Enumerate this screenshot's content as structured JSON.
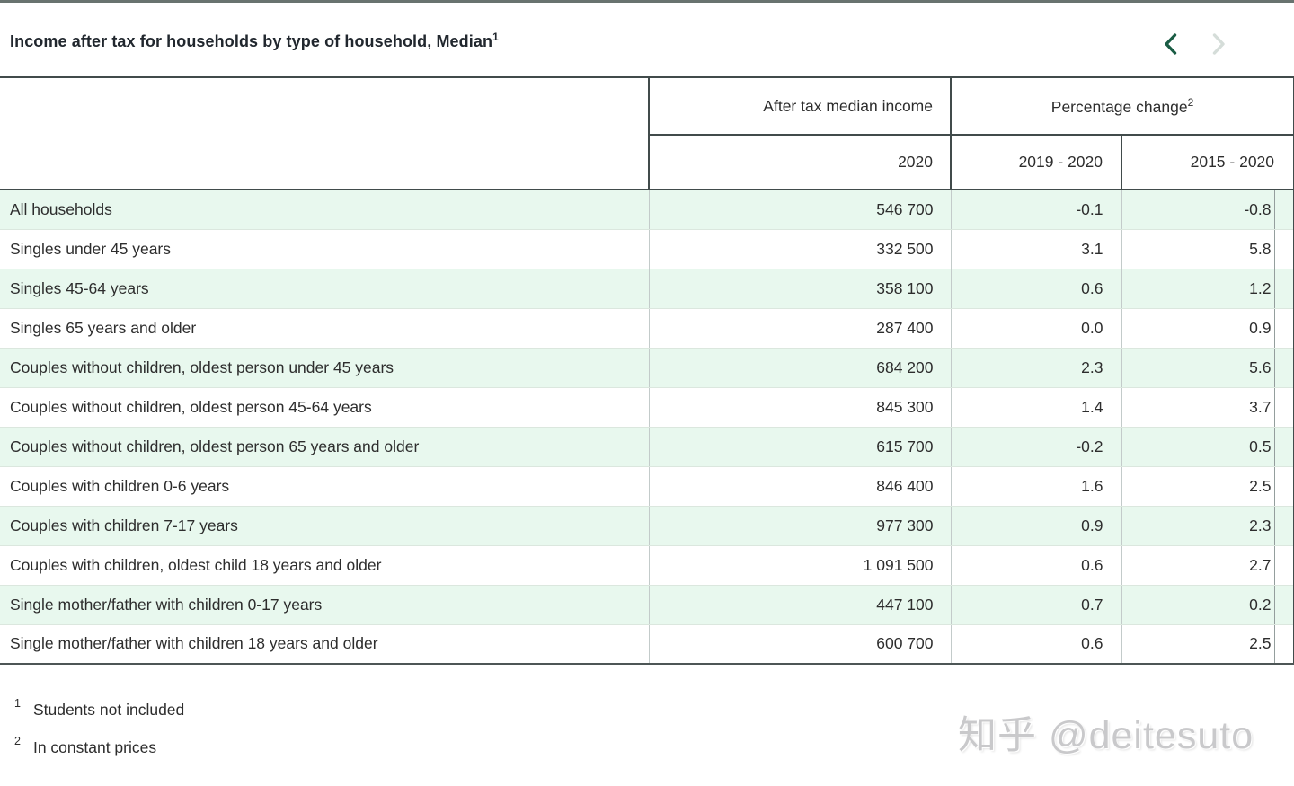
{
  "page": {
    "title": "Income after tax for households by type of household, Median",
    "title_footnote_ref": "1"
  },
  "pager": {
    "prev_label": "previous table page",
    "next_label": "next table page"
  },
  "table": {
    "groups": [
      {
        "label": "After tax median income",
        "sup": ""
      },
      {
        "label": "Percentage change",
        "sup": "2"
      }
    ],
    "columns": [
      "2020",
      "2019 - 2020",
      "2015 - 2020"
    ],
    "rows": [
      {
        "label": "All households",
        "values": [
          "546 700",
          "-0.1",
          "-0.8"
        ]
      },
      {
        "label": "Singles under 45 years",
        "values": [
          "332 500",
          "3.1",
          "5.8"
        ]
      },
      {
        "label": "Singles 45-64 years",
        "values": [
          "358 100",
          "0.6",
          "1.2"
        ]
      },
      {
        "label": "Singles 65 years and older",
        "values": [
          "287 400",
          "0.0",
          "0.9"
        ]
      },
      {
        "label": "Couples without children, oldest person under 45 years",
        "values": [
          "684 200",
          "2.3",
          "5.6"
        ]
      },
      {
        "label": "Couples without children, oldest person 45-64 years",
        "values": [
          "845 300",
          "1.4",
          "3.7"
        ]
      },
      {
        "label": "Couples without children, oldest person 65 years and older",
        "values": [
          "615 700",
          "-0.2",
          "0.5"
        ]
      },
      {
        "label": "Couples with children 0-6 years",
        "values": [
          "846 400",
          "1.6",
          "2.5"
        ]
      },
      {
        "label": "Couples with children 7-17 years",
        "values": [
          "977 300",
          "0.9",
          "2.3"
        ]
      },
      {
        "label": "Couples with children, oldest child 18 years and older",
        "values": [
          "1 091 500",
          "0.6",
          "2.7"
        ]
      },
      {
        "label": "Single mother/father with children 0-17 years",
        "values": [
          "447 100",
          "0.7",
          "0.2"
        ]
      },
      {
        "label": "Single mother/father with children 18 years and older",
        "values": [
          "600 700",
          "0.6",
          "2.5"
        ]
      }
    ]
  },
  "footnotes": [
    {
      "ref": "1",
      "text": "Students not included"
    },
    {
      "ref": "2",
      "text": "In constant prices"
    }
  ],
  "watermark": "知乎 @deitesuto",
  "colors": {
    "row_stripe_green": "#e8f8ee",
    "dark_border": "#414b4b",
    "chevron_active_green": "#1a5c44",
    "chevron_disabled_gray": "#d5ddd9",
    "top_bar": "#68736f"
  }
}
